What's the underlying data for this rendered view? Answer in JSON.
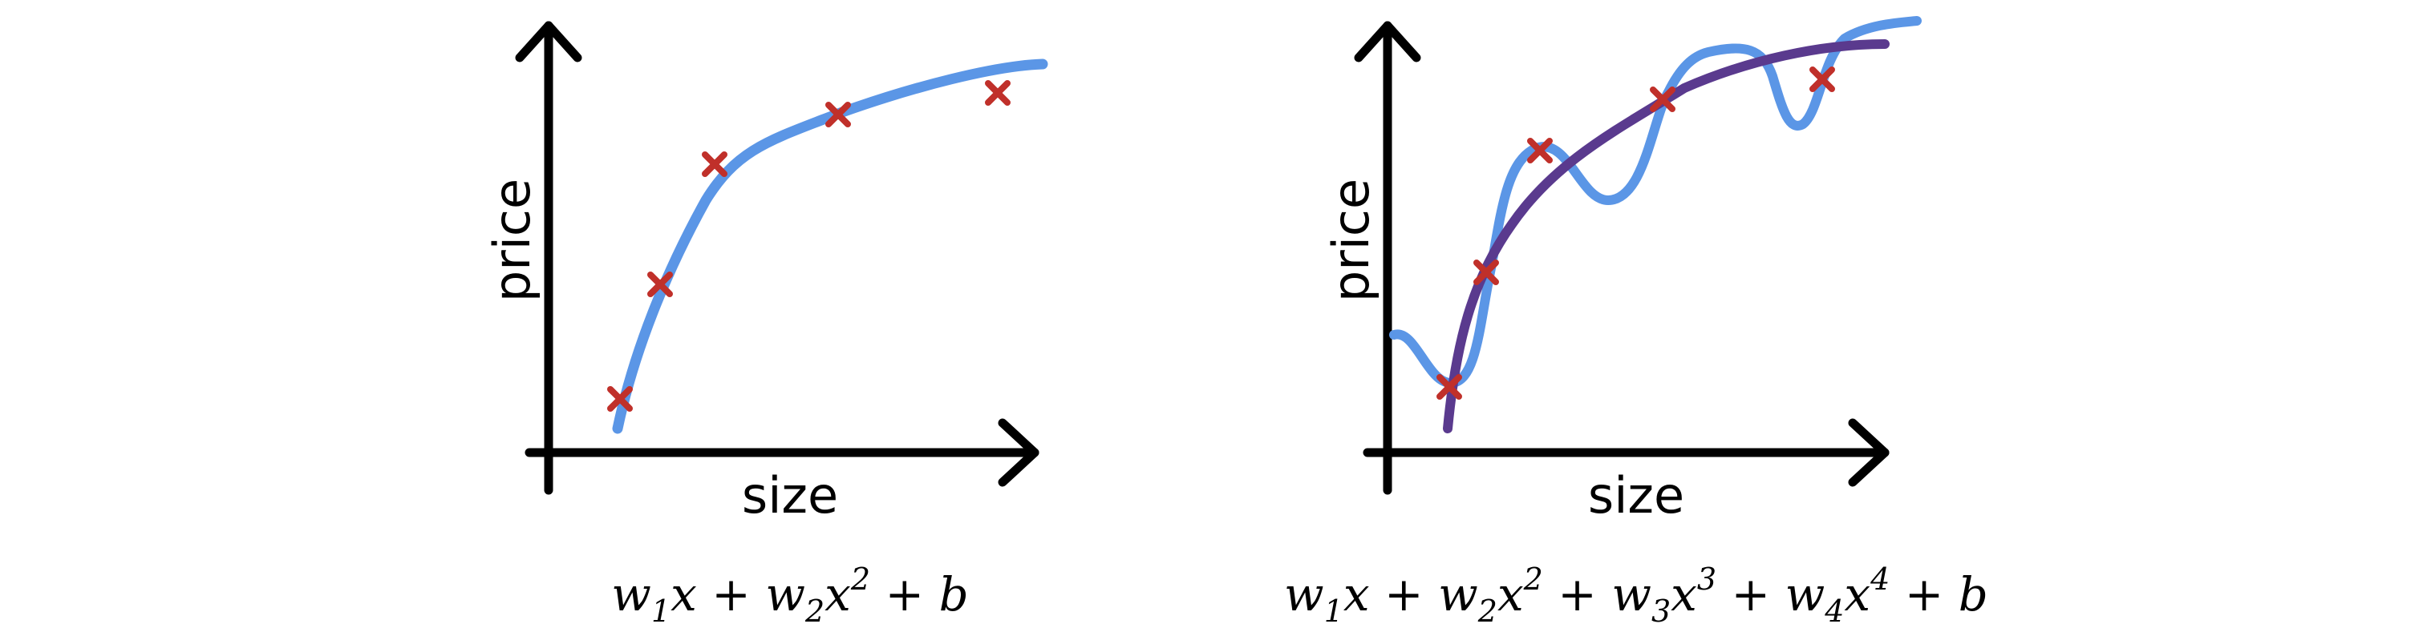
{
  "left_panel": {
    "y_label": "price",
    "x_label": "size",
    "formula": [
      {
        "t": "w",
        "k": "var"
      },
      {
        "t": "1",
        "k": "sub"
      },
      {
        "t": "x",
        "k": "var"
      },
      {
        "t": " + ",
        "k": "op"
      },
      {
        "t": "w",
        "k": "var"
      },
      {
        "t": "2",
        "k": "sub"
      },
      {
        "t": "x",
        "k": "var"
      },
      {
        "t": "2",
        "k": "sup"
      },
      {
        "t": " + ",
        "k": "op"
      },
      {
        "t": "b",
        "k": "var"
      }
    ]
  },
  "right_panel": {
    "y_label": "price",
    "x_label": "size",
    "formula": [
      {
        "t": "w",
        "k": "var"
      },
      {
        "t": "1",
        "k": "sub"
      },
      {
        "t": "x",
        "k": "var"
      },
      {
        "t": " + ",
        "k": "op"
      },
      {
        "t": "w",
        "k": "var"
      },
      {
        "t": "2",
        "k": "sub"
      },
      {
        "t": "x",
        "k": "var"
      },
      {
        "t": "2",
        "k": "sup"
      },
      {
        "t": " + ",
        "k": "op"
      },
      {
        "t": "w",
        "k": "var"
      },
      {
        "t": "3",
        "k": "sub"
      },
      {
        "t": "x",
        "k": "var"
      },
      {
        "t": "3",
        "k": "sup"
      },
      {
        "t": " + ",
        "k": "op"
      },
      {
        "t": "w",
        "k": "var"
      },
      {
        "t": "4",
        "k": "sub"
      },
      {
        "t": "x",
        "k": "var"
      },
      {
        "t": "4",
        "k": "sup"
      },
      {
        "t": " + ",
        "k": "op"
      },
      {
        "t": "b",
        "k": "var"
      }
    ]
  },
  "colors": {
    "axis": "#000000",
    "data_marker": "#c0302a",
    "fit_curve": "#5b96e6",
    "smooth_curve": "#5a3a8e"
  }
}
